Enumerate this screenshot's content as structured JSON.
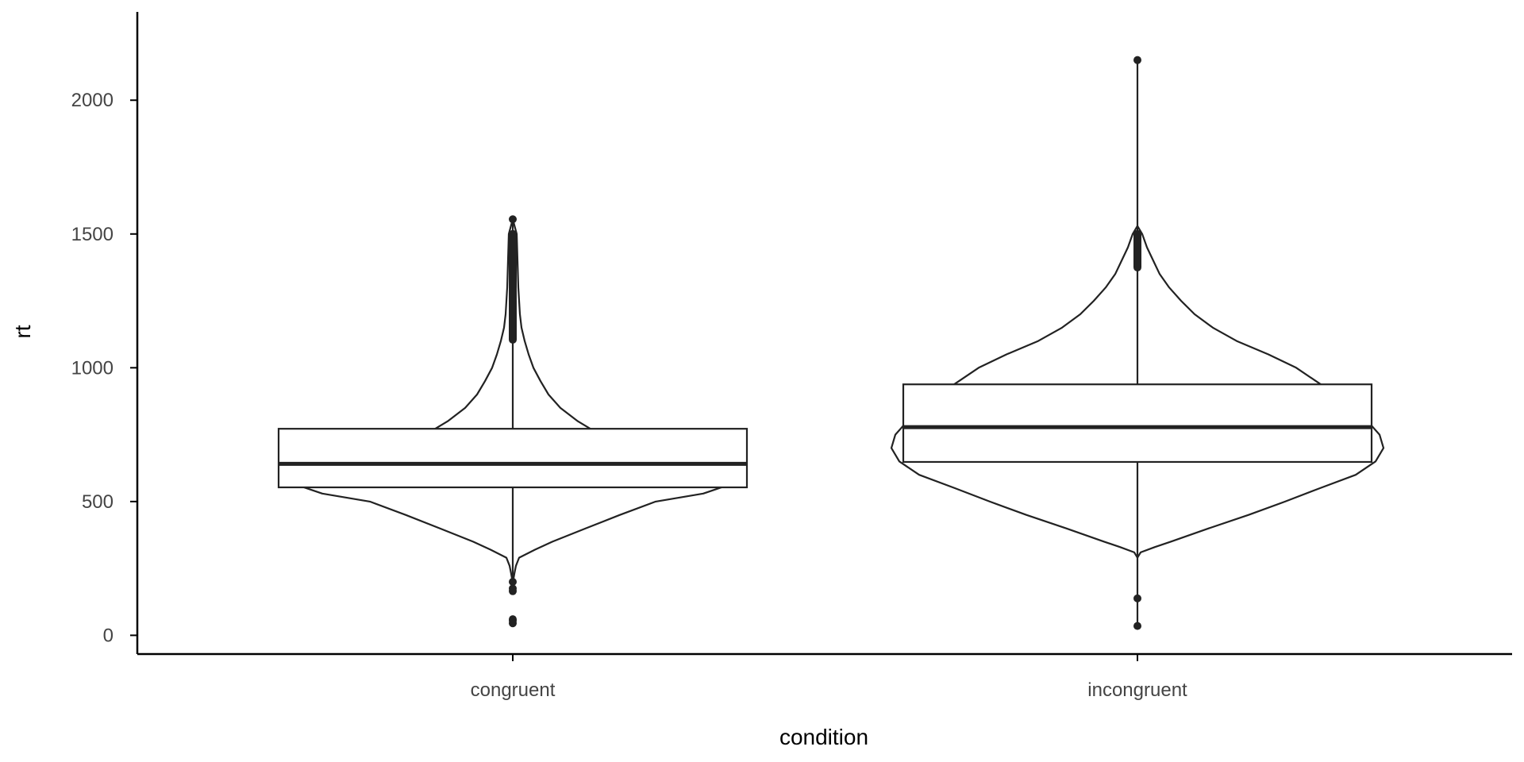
{
  "chart_data": {
    "type": "violin+box",
    "xlabel": "condition",
    "ylabel": "rt",
    "ylim": [
      -70,
      2330
    ],
    "yticks": [
      0,
      500,
      1000,
      1500,
      2000
    ],
    "categories": [
      "congruent",
      "incongruent"
    ],
    "grid": false,
    "legend": "none",
    "groups": [
      {
        "name": "congruent",
        "violin_min": 195,
        "violin_max": 1555,
        "box": {
          "q1": 553,
          "median": 641,
          "q3": 772,
          "whisker_low": 210,
          "whisker_high": 1100
        },
        "density_profile": [
          [
            195,
            0
          ],
          [
            230,
            2
          ],
          [
            260,
            4
          ],
          [
            290,
            8
          ],
          [
            320,
            28
          ],
          [
            350,
            50
          ],
          [
            400,
            92
          ],
          [
            450,
            135
          ],
          [
            500,
            180
          ],
          [
            530,
            240
          ],
          [
            560,
            270
          ],
          [
            580,
            282
          ],
          [
            600,
            270
          ],
          [
            620,
            235
          ],
          [
            650,
            175
          ],
          [
            700,
            140
          ],
          [
            750,
            110
          ],
          [
            800,
            82
          ],
          [
            850,
            60
          ],
          [
            900,
            45
          ],
          [
            950,
            35
          ],
          [
            1000,
            26
          ],
          [
            1050,
            20
          ],
          [
            1100,
            15
          ],
          [
            1150,
            11
          ],
          [
            1200,
            9
          ],
          [
            1300,
            7
          ],
          [
            1400,
            6
          ],
          [
            1500,
            5
          ],
          [
            1555,
            0
          ]
        ],
        "outliers": [
          45,
          55,
          60,
          165,
          175,
          200,
          1555
        ],
        "outlier_band": [
          1105,
          1500
        ]
      },
      {
        "name": "incongruent",
        "violin_min": 30,
        "violin_max": 2150,
        "box": {
          "q1": 648,
          "median": 778,
          "q3": 938,
          "whisker_low": 230,
          "whisker_high": 1370
        },
        "density_profile": [
          [
            290,
            0
          ],
          [
            310,
            4
          ],
          [
            330,
            22
          ],
          [
            350,
            42
          ],
          [
            400,
            90
          ],
          [
            450,
            140
          ],
          [
            500,
            186
          ],
          [
            550,
            230
          ],
          [
            600,
            275
          ],
          [
            650,
            300
          ],
          [
            700,
            310
          ],
          [
            750,
            305
          ],
          [
            800,
            290
          ],
          [
            850,
            270
          ],
          [
            900,
            250
          ],
          [
            950,
            225
          ],
          [
            1000,
            200
          ],
          [
            1050,
            165
          ],
          [
            1100,
            125
          ],
          [
            1150,
            95
          ],
          [
            1200,
            72
          ],
          [
            1250,
            55
          ],
          [
            1300,
            40
          ],
          [
            1350,
            28
          ],
          [
            1400,
            20
          ],
          [
            1450,
            12
          ],
          [
            1500,
            6
          ],
          [
            1530,
            0
          ]
        ],
        "outliers": [
          35,
          138,
          2150
        ],
        "outlier_band": [
          1375,
          1500
        ]
      }
    ]
  }
}
